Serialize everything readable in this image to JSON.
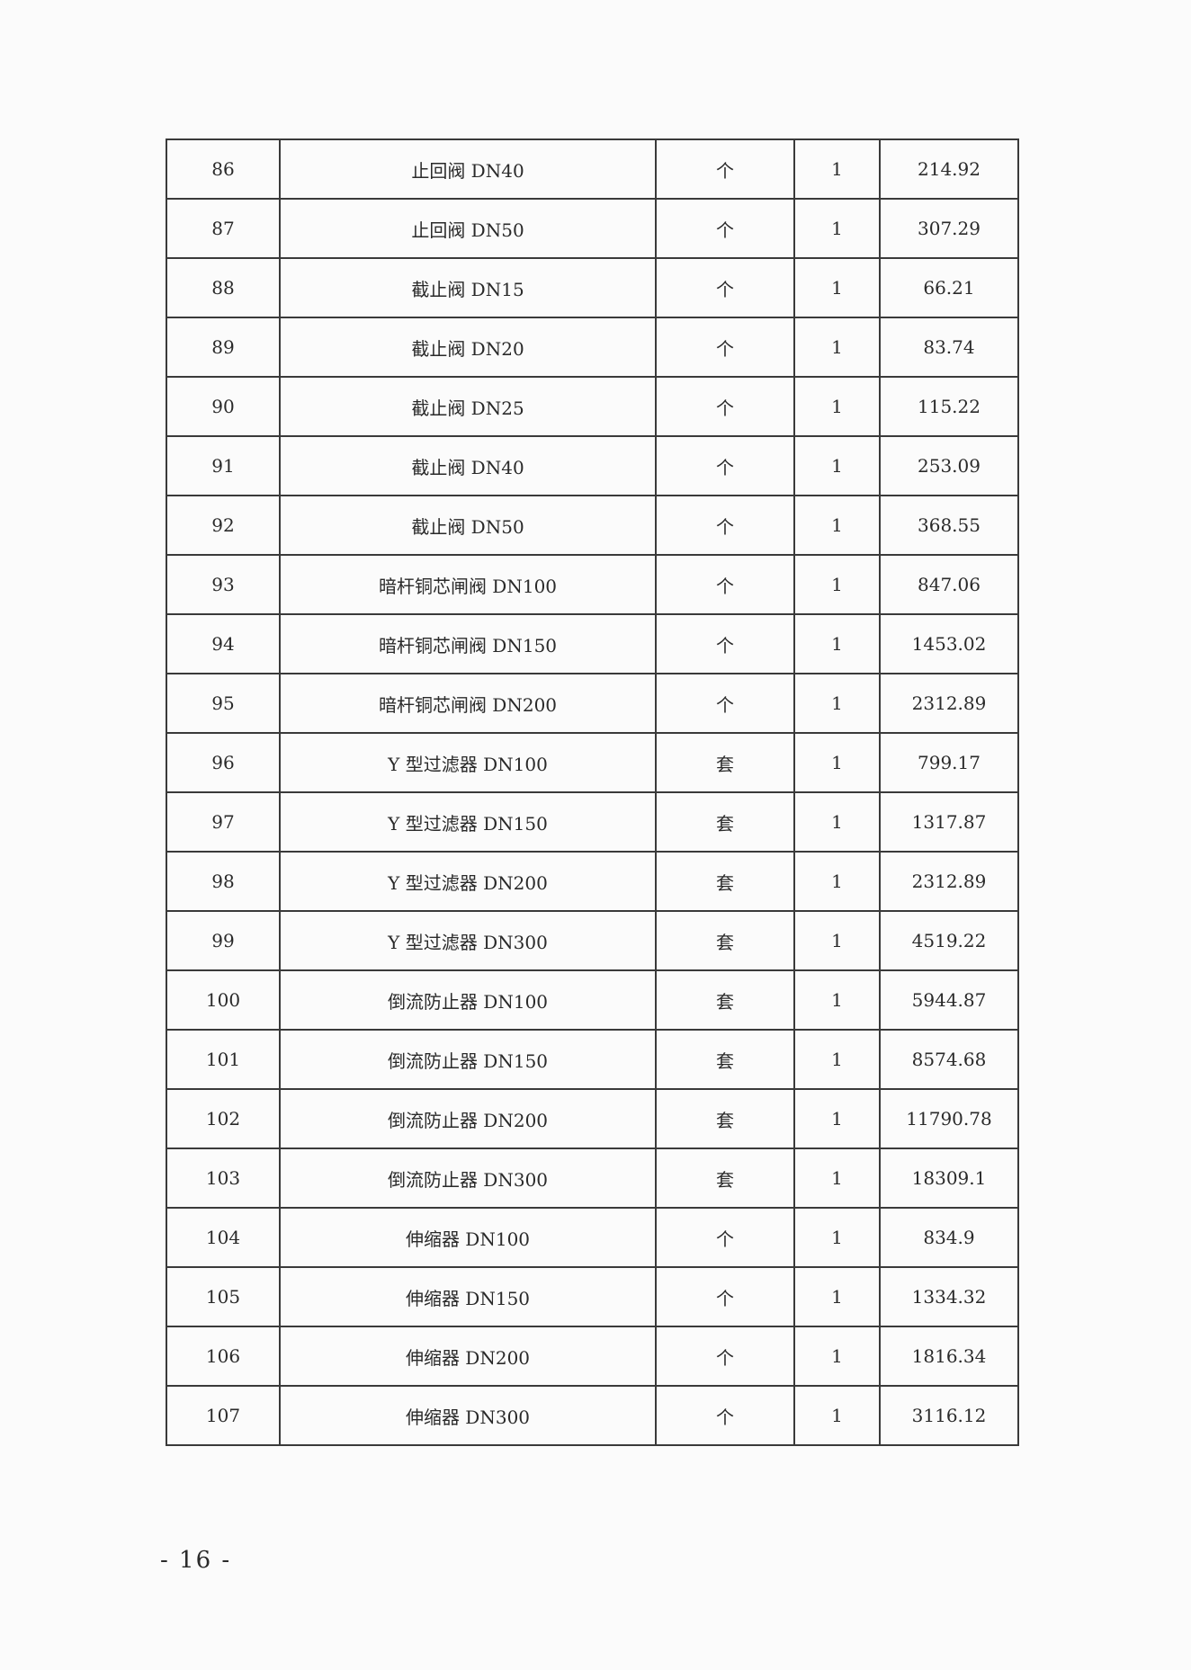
{
  "table": {
    "rows": [
      [
        "86",
        "止回阀 DN40",
        "个",
        "1",
        "214.92"
      ],
      [
        "87",
        "止回阀 DN50",
        "个",
        "1",
        "307.29"
      ],
      [
        "88",
        "截止阀 DN15",
        "个",
        "1",
        "66.21"
      ],
      [
        "89",
        "截止阀 DN20",
        "个",
        "1",
        "83.74"
      ],
      [
        "90",
        "截止阀 DN25",
        "个",
        "1",
        "115.22"
      ],
      [
        "91",
        "截止阀 DN40",
        "个",
        "1",
        "253.09"
      ],
      [
        "92",
        "截止阀 DN50",
        "个",
        "1",
        "368.55"
      ],
      [
        "93",
        "暗杆铜芯闸阀 DN100",
        "个",
        "1",
        "847.06"
      ],
      [
        "94",
        "暗杆铜芯闸阀 DN150",
        "个",
        "1",
        "1453.02"
      ],
      [
        "95",
        "暗杆铜芯闸阀  DN200",
        "个",
        "1",
        "2312.89"
      ],
      [
        "96",
        "Y 型过滤器 DN100",
        "套",
        "1",
        "799.17"
      ],
      [
        "97",
        "Y 型过滤器 DN150",
        "套",
        "1",
        "1317.87"
      ],
      [
        "98",
        "Y 型过滤器 DN200",
        "套",
        "1",
        "2312.89"
      ],
      [
        "99",
        "Y 型过滤器 DN300",
        "套",
        "1",
        "4519.22"
      ],
      [
        "100",
        "倒流防止器 DN100",
        "套",
        "1",
        "5944.87"
      ],
      [
        "101",
        "倒流防止器 DN150",
        "套",
        "1",
        "8574.68"
      ],
      [
        "102",
        "倒流防止器 DN200",
        "套",
        "1",
        "11790.78"
      ],
      [
        "103",
        "倒流防止器 DN300",
        "套",
        "1",
        "18309.1"
      ],
      [
        "104",
        "伸缩器 DN100",
        "个",
        "1",
        "834.9"
      ],
      [
        "105",
        "伸缩器 DN150",
        "个",
        "1",
        "1334.32"
      ],
      [
        "106",
        "伸缩器 DN200",
        "个",
        "1",
        "1816.34"
      ],
      [
        "107",
        "伸缩器 DN300",
        "个",
        "1",
        "3116.12"
      ]
    ]
  },
  "footer": {
    "page_number": "- 16 -"
  }
}
